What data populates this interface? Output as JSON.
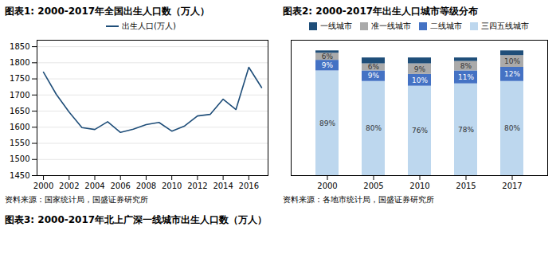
{
  "chart_data": [
    {
      "type": "line",
      "title": "图表1: 2000-2017年全国出生人口数（万人）",
      "x": [
        2000,
        2001,
        2002,
        2003,
        2004,
        2005,
        2006,
        2007,
        2008,
        2009,
        2010,
        2011,
        2012,
        2013,
        2014,
        2015,
        2016,
        2017
      ],
      "series": [
        {
          "name": "出生人口(万人)",
          "color": "#1f4e79",
          "values": [
            1771,
            1702,
            1647,
            1599,
            1593,
            1617,
            1584,
            1594,
            1608,
            1615,
            1588,
            1604,
            1635,
            1640,
            1687,
            1655,
            1786,
            1723
          ]
        }
      ],
      "xlim": [
        1999.5,
        2017.5
      ],
      "xticks": [
        2000,
        2002,
        2004,
        2006,
        2008,
        2010,
        2012,
        2014,
        2016
      ],
      "ylim": [
        1450,
        1870
      ],
      "yticks": [
        1450,
        1500,
        1550,
        1600,
        1650,
        1700,
        1750,
        1800,
        1850
      ],
      "grid": true,
      "legend": "top",
      "annotations": [
        "资料来源：国家统计局，国盛证券研究所"
      ]
    },
    {
      "type": "bar",
      "stacked": true,
      "title": "图表2: 2000-2017年出生人口城市等级分布",
      "categories": [
        "2000",
        "2005",
        "2010",
        "2015",
        "2017"
      ],
      "series": [
        {
          "name": "三四五线城市",
          "color": "#bdd7ee",
          "values": [
            89,
            80,
            76,
            78,
            80
          ],
          "data_labels": true,
          "value_labels": [
            "89%",
            "80%",
            "76%",
            "78%",
            "80%"
          ]
        },
        {
          "name": "二线城市",
          "color": "#4472c4",
          "values": [
            9,
            9,
            10,
            11,
            12
          ],
          "data_labels": true,
          "value_labels": [
            "9%",
            "9%",
            "10%",
            "11%",
            "12%"
          ]
        },
        {
          "name": "准一线城市",
          "color": "#aaaaaa",
          "values": [
            6,
            6,
            9,
            8,
            10
          ],
          "data_labels": true,
          "value_labels": [
            "6%",
            "6%",
            "9%",
            "8%",
            "10%"
          ]
        },
        {
          "name": "一线城市",
          "color": "#1f4e79",
          "values": [
            2,
            5,
            5,
            3,
            4
          ],
          "data_labels": false
        }
      ],
      "ylim": [
        0,
        115
      ],
      "tick_labels": "x",
      "grid": false,
      "legend": "top",
      "annotations": [
        "资料来源：各地市统计局，国盛证券研究所"
      ]
    }
  ],
  "caption": "图表3: 2000-2017年北上广深一线城市出生人口数（万人）"
}
